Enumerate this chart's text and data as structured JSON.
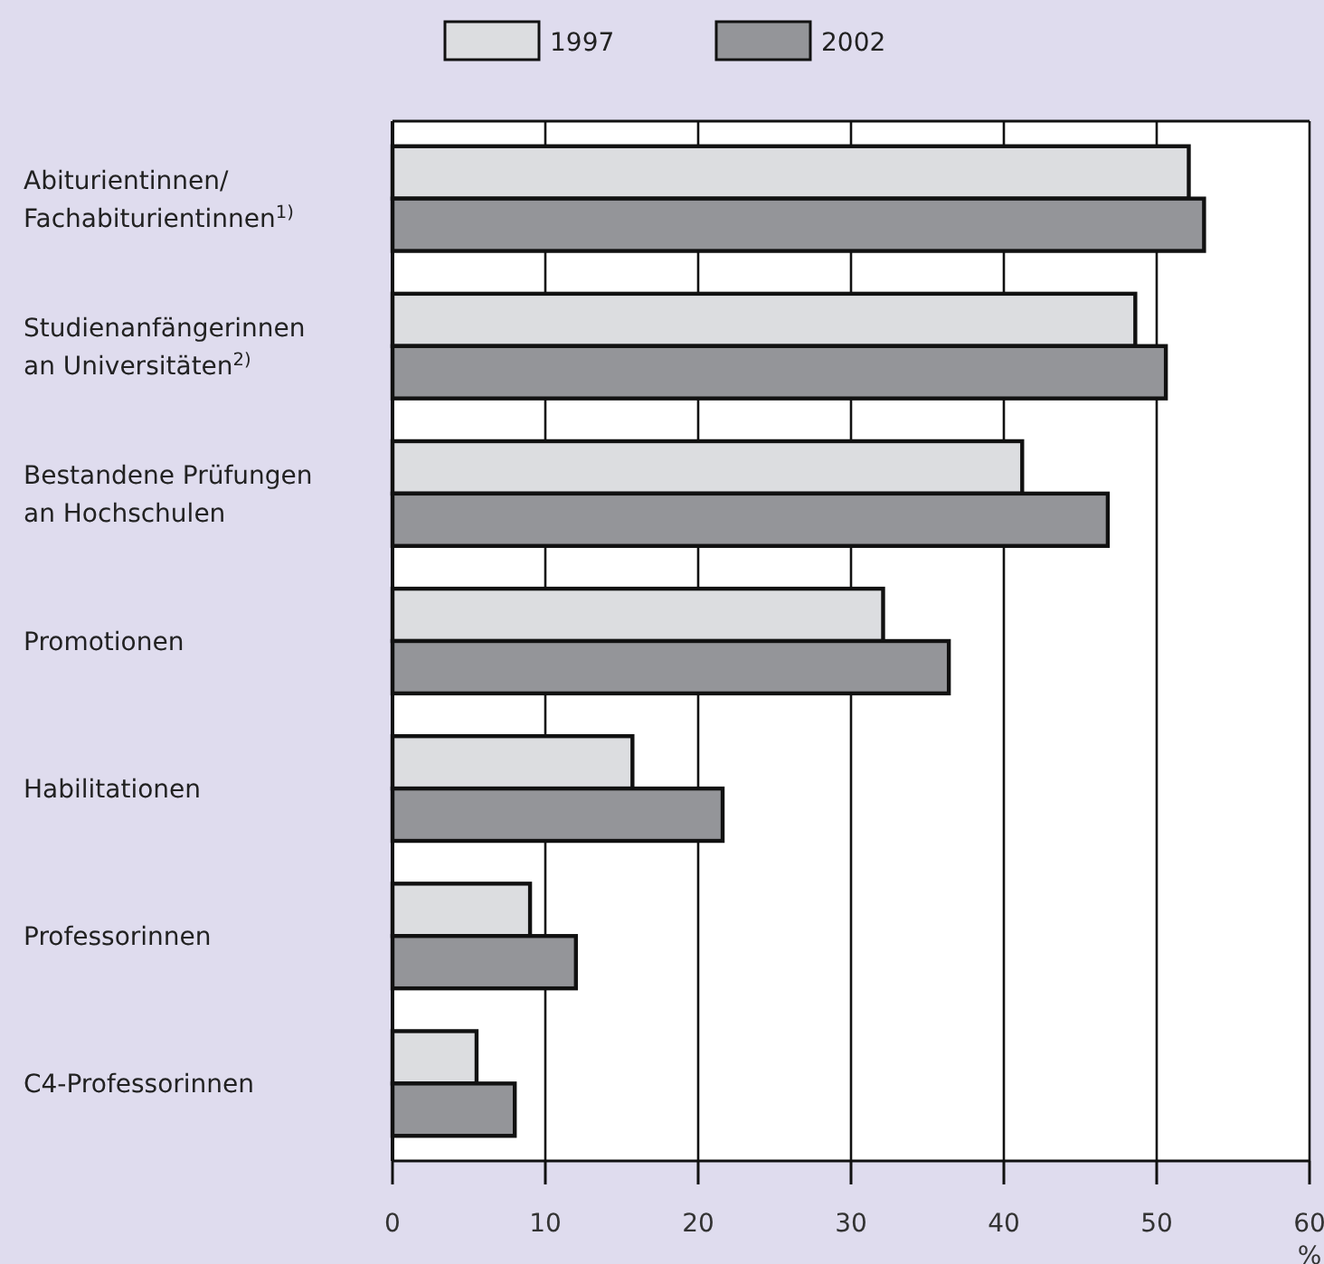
{
  "chart_data": {
    "type": "bar",
    "orientation": "horizontal",
    "categories": [
      "Abiturientinnen/\nFachabiturientinnen$^{1)}$",
      "Studienanfängerinnen\nan Universitäten$^{2)}$",
      "Bestandene Prüfungen\nan Hochschulen",
      "Promotionen",
      "Habilitationen",
      "Professorinnen",
      "C4-Professorinnen"
    ],
    "series": [
      {
        "name": "1997",
        "color": "#dcdde0",
        "values": [
          52.1,
          48.6,
          41.2,
          32.1,
          15.7,
          9.0,
          5.5
        ]
      },
      {
        "name": "2002",
        "color": "#949599",
        "values": [
          53.1,
          50.6,
          46.8,
          36.4,
          21.6,
          12.0,
          8.0
        ]
      }
    ],
    "xlim": [
      0,
      60
    ],
    "xticks": [
      0,
      10,
      20,
      30,
      40,
      50,
      60
    ],
    "xlabel": "%",
    "grid": "x",
    "legend": "top"
  }
}
